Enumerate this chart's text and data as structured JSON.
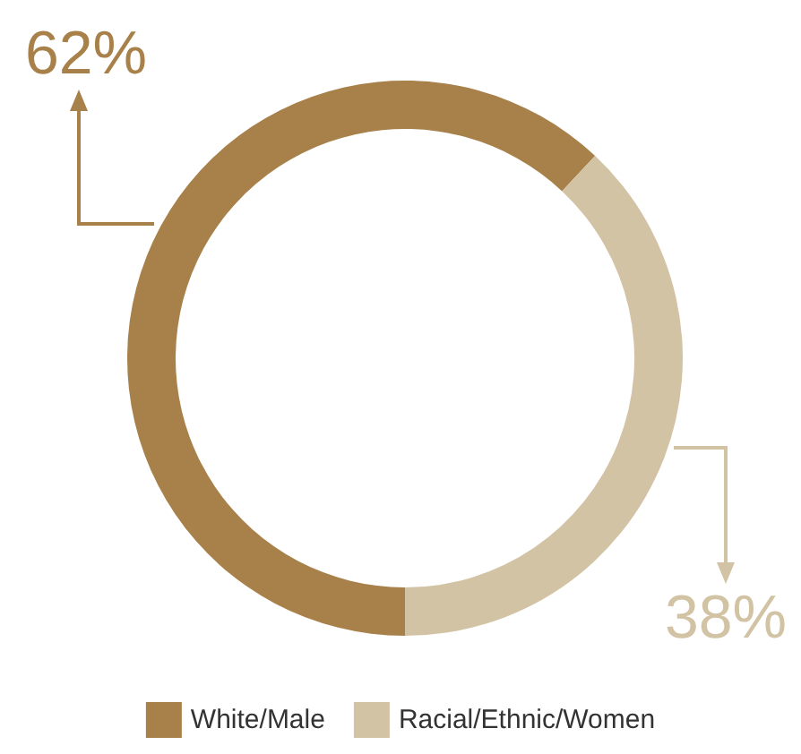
{
  "chart_data": {
    "type": "donut",
    "categories": [
      "White/Male",
      "Racial/Ethnic/Women"
    ],
    "values": [
      62,
      38
    ],
    "colors": [
      "#a8804a",
      "#d2c3a4"
    ],
    "value_labels": [
      "62%",
      "38%"
    ],
    "legend": "bottom"
  }
}
